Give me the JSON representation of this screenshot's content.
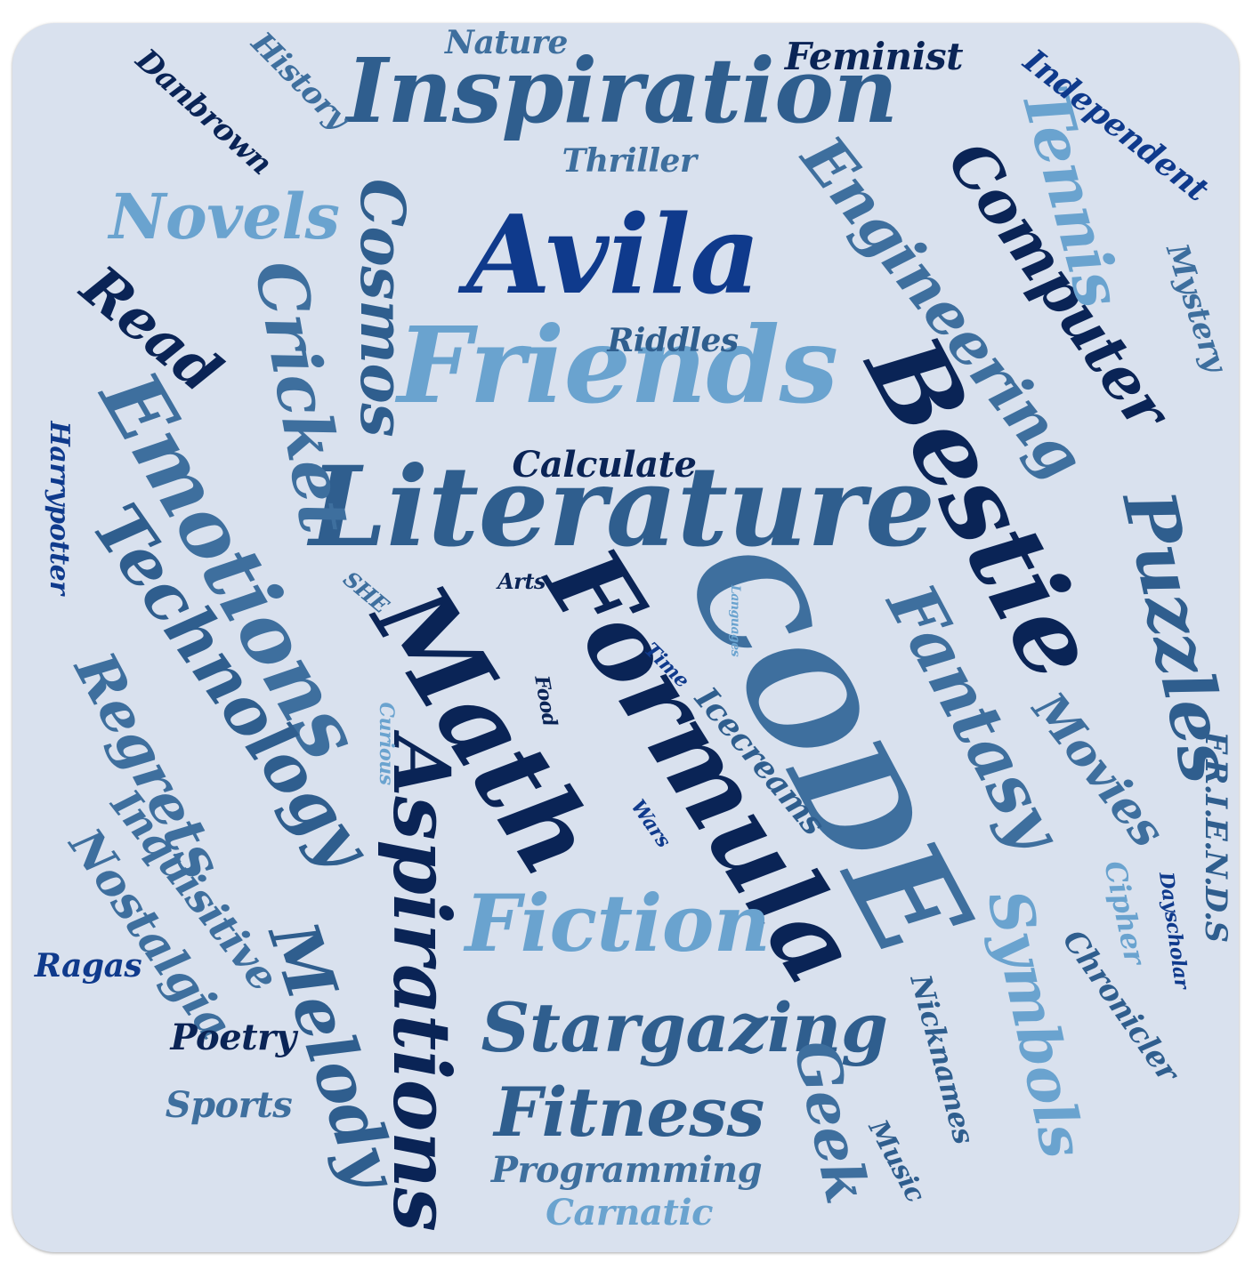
{
  "colors": {
    "background": "#d9e1ee",
    "navy": "#0a2456",
    "royal": "#0f3a8c",
    "slate": "#2f5e8e",
    "steel": "#3e6f9e",
    "sky": "#6aa3cf"
  },
  "words": [
    {
      "text": "Inspiration",
      "color": "#2f5e8e"
    },
    {
      "text": "Avila",
      "color": "#0f3a8c"
    },
    {
      "text": "Friends",
      "color": "#6aa3cf"
    },
    {
      "text": "Literature",
      "color": "#2f5e8e"
    },
    {
      "text": "Bestie",
      "color": "#0a2456"
    },
    {
      "text": "CODE",
      "color": "#3e6f9e"
    },
    {
      "text": "Formula",
      "color": "#0a2456"
    },
    {
      "text": "Math",
      "color": "#0a2456"
    },
    {
      "text": "Fiction",
      "color": "#6aa3cf"
    },
    {
      "text": "Aspirations",
      "color": "#0a2456"
    },
    {
      "text": "Stargazing",
      "color": "#2f5e8e"
    },
    {
      "text": "Fitness",
      "color": "#2f5e8e"
    },
    {
      "text": "Emotions",
      "color": "#3e6f9e"
    },
    {
      "text": "Technology",
      "color": "#2f5e8e"
    },
    {
      "text": "Cricket",
      "color": "#3e6f9e"
    },
    {
      "text": "Cosmos",
      "color": "#2f5e8e"
    },
    {
      "text": "Novels",
      "color": "#6aa3cf"
    },
    {
      "text": "Read",
      "color": "#0a2456"
    },
    {
      "text": "Regrets",
      "color": "#3e6f9e"
    },
    {
      "text": "Engineering",
      "color": "#3e6f9e"
    },
    {
      "text": "Computer",
      "color": "#0a2456"
    },
    {
      "text": "Tennis",
      "color": "#6aa3cf"
    },
    {
      "text": "Puzzles",
      "color": "#2f5e8e"
    },
    {
      "text": "Fantasy",
      "color": "#3e6f9e"
    },
    {
      "text": "Symbols",
      "color": "#6aa3cf"
    },
    {
      "text": "Melody",
      "color": "#2f5e8e"
    },
    {
      "text": "Geek",
      "color": "#3e6f9e"
    },
    {
      "text": "Movies",
      "color": "#3e6f9e"
    },
    {
      "text": "Icecreams",
      "color": "#2f5e8e"
    },
    {
      "text": "Programming",
      "color": "#3e6f9e"
    },
    {
      "text": "Carnatic",
      "color": "#6aa3cf"
    },
    {
      "text": "Nostalgia",
      "color": "#3e6f9e"
    },
    {
      "text": "Inquisitive",
      "color": "#3e6f9e"
    },
    {
      "text": "Poetry",
      "color": "#0a2456"
    },
    {
      "text": "Sports",
      "color": "#3e6f9e"
    },
    {
      "text": "Ragas",
      "color": "#0f3a8c"
    },
    {
      "text": "Harrypotter",
      "color": "#0f3a8c"
    },
    {
      "text": "Danbrown",
      "color": "#0a2456"
    },
    {
      "text": "History",
      "color": "#3e6f9e"
    },
    {
      "text": "Nature",
      "color": "#3e6f9e"
    },
    {
      "text": "Feminist",
      "color": "#0a2456"
    },
    {
      "text": "Independent",
      "color": "#0f3a8c"
    },
    {
      "text": "Mystery",
      "color": "#3e6f9e"
    },
    {
      "text": "Thriller",
      "color": "#3e6f9e"
    },
    {
      "text": "Riddles",
      "color": "#2f5e8e"
    },
    {
      "text": "Calculate",
      "color": "#0a2456"
    },
    {
      "text": "Arts",
      "color": "#0a2456"
    },
    {
      "text": "SHE",
      "color": "#3e6f9e"
    },
    {
      "text": "Languages",
      "color": "#6aa3cf"
    },
    {
      "text": "Time",
      "color": "#0f3a8c"
    },
    {
      "text": "Food",
      "color": "#0a2456"
    },
    {
      "text": "Curious",
      "color": "#6aa3cf"
    },
    {
      "text": "Wars",
      "color": "#0f3a8c"
    },
    {
      "text": "F.R.I.E.N.D.S",
      "color": "#2f5e8e"
    },
    {
      "text": "Cipher",
      "color": "#6aa3cf"
    },
    {
      "text": "Dayscholar",
      "color": "#0f3a8c"
    },
    {
      "text": "Chronicler",
      "color": "#2f5e8e"
    },
    {
      "text": "Nicknames",
      "color": "#2f5e8e"
    },
    {
      "text": "Music",
      "color": "#2f5e8e"
    }
  ]
}
